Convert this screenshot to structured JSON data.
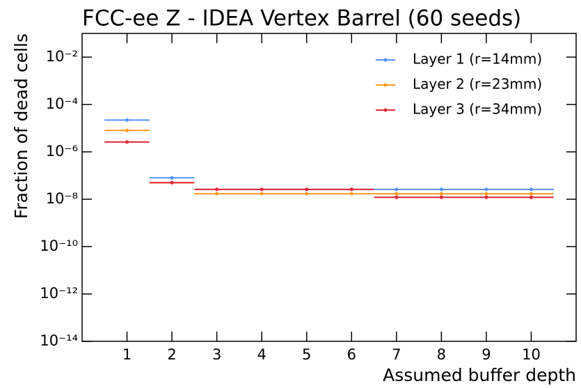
{
  "chart_data": {
    "type": "errorbar",
    "title": "FCC-ee Z - IDEA Vertex Barrel (60 seeds)",
    "x_label": "Assumed buffer depth",
    "y_label": "Fraction of dead cells",
    "categories": [
      1,
      2,
      3,
      4,
      5,
      6,
      7,
      8,
      9,
      10
    ],
    "x_error": 0.5,
    "series": [
      {
        "name": "Layer 1 (r=14mm)",
        "color": "#5790fc",
        "values": [
          2.2e-05,
          8e-08,
          2.6e-08,
          2.6e-08,
          2.6e-08,
          2.6e-08,
          2.6e-08,
          2.6e-08,
          2.6e-08,
          2.6e-08
        ]
      },
      {
        "name": "Layer 2 (r=23mm)",
        "color": "#f89c20",
        "values": [
          8e-06,
          5e-08,
          1.7e-08,
          1.7e-08,
          1.7e-08,
          1.7e-08,
          1.7e-08,
          1.7e-08,
          1.7e-08,
          1.7e-08
        ]
      },
      {
        "name": "Layer 3 (r=34mm)",
        "color": "#e42536",
        "values": [
          2.6e-06,
          5e-08,
          2.6e-08,
          2.6e-08,
          2.6e-08,
          2.6e-08,
          1.2e-08,
          1.2e-08,
          1.2e-08,
          1.2e-08
        ]
      }
    ],
    "xlim": [
      0,
      11
    ],
    "xticks": [
      1,
      2,
      3,
      4,
      5,
      6,
      7,
      8,
      9,
      10
    ],
    "ylim": [
      1e-14,
      0.1
    ],
    "y_log": true,
    "yticks": [
      {
        "value": 1e-14,
        "label": "10⁻¹⁴"
      },
      {
        "value": 1e-12,
        "label": "10⁻¹²"
      },
      {
        "value": 1e-10,
        "label": "10⁻¹⁰"
      },
      {
        "value": 1e-08,
        "label": "10⁻⁸"
      },
      {
        "value": 1e-06,
        "label": "10⁻⁶"
      },
      {
        "value": 0.0001,
        "label": "10⁻⁴"
      },
      {
        "value": 0.01,
        "label": "10⁻²"
      }
    ],
    "legend": "upper right"
  }
}
